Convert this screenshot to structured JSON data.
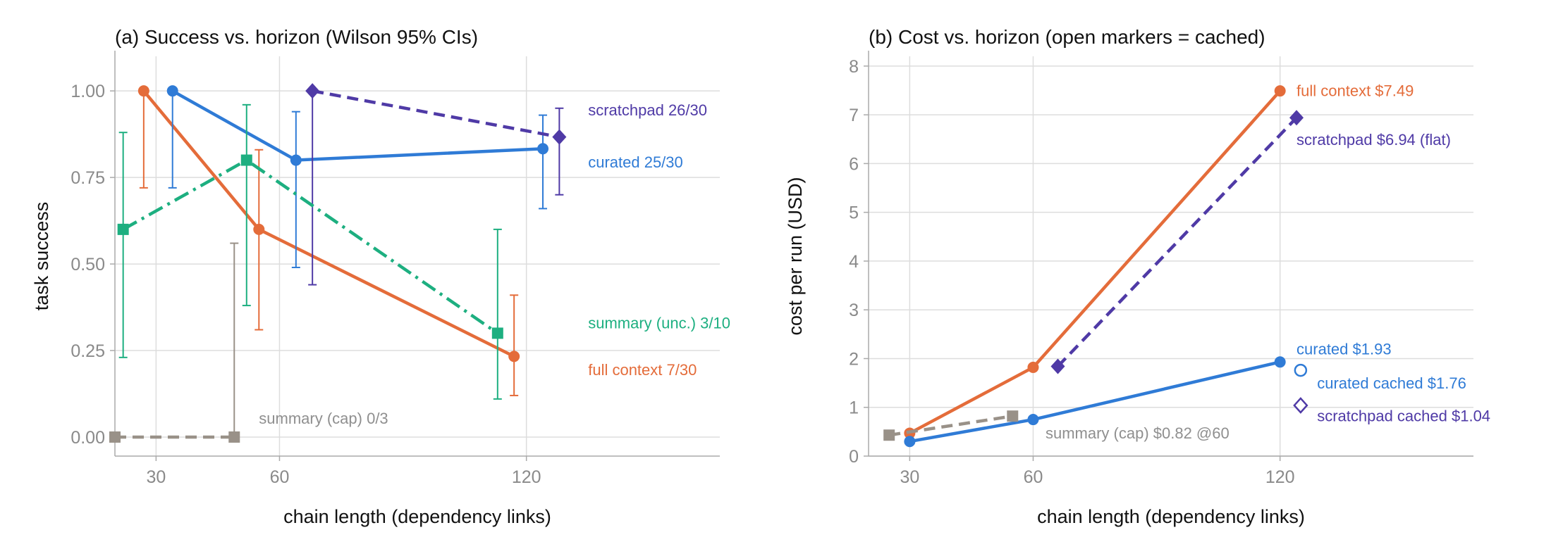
{
  "chart_data": [
    {
      "type": "line",
      "title": "(a) Success vs. horizon (Wilson 95% CIs)",
      "xlabel": "chain length (dependency links)",
      "ylabel": "task success",
      "xticks": [
        "30",
        "60",
        "120"
      ],
      "yticks": [
        "0.00",
        "0.25",
        "0.50",
        "0.75",
        "1.00"
      ],
      "xlim": [
        20,
        167
      ],
      "ylim": [
        -0.055,
        1.1
      ],
      "grid": true,
      "series": [
        {
          "name": "full context",
          "color": "#E46C3A",
          "marker": "circle",
          "dash": "solid",
          "x": [
            27,
            55,
            117
          ],
          "y": [
            1.0,
            0.6,
            0.233
          ],
          "ci_low": [
            0.72,
            0.31,
            0.12
          ],
          "ci_high": [
            1.0,
            0.83,
            0.41
          ]
        },
        {
          "name": "curated",
          "color": "#2F7BD6",
          "marker": "circle",
          "dash": "solid",
          "x": [
            34,
            64,
            124
          ],
          "y": [
            1.0,
            0.8,
            0.833
          ],
          "ci_low": [
            0.72,
            0.49,
            0.66
          ],
          "ci_high": [
            1.0,
            0.94,
            0.93
          ]
        },
        {
          "name": "scratchpad",
          "color": "#4F3AA6",
          "marker": "diamond",
          "dash": "dashed",
          "x": [
            68,
            128
          ],
          "y": [
            1.0,
            0.867
          ],
          "ci_low": [
            0.44,
            0.7
          ],
          "ci_high": [
            1.0,
            0.95
          ]
        },
        {
          "name": "summary (unc.)",
          "color": "#1DAF80",
          "marker": "square",
          "dash": "dashdot",
          "x": [
            22,
            52,
            113
          ],
          "y": [
            0.6,
            0.8,
            0.3
          ],
          "ci_low": [
            0.23,
            0.38,
            0.11
          ],
          "ci_high": [
            0.88,
            0.96,
            0.6
          ]
        },
        {
          "name": "summary (cap)",
          "color": "#999188",
          "marker": "square",
          "dash": "dashed",
          "x": [
            20,
            49
          ],
          "y": [
            0.0,
            0.0
          ],
          "ci_low": [
            null,
            0.0
          ],
          "ci_high": [
            null,
            0.56
          ]
        }
      ],
      "annotations": [
        {
          "text": "scratchpad 26/30",
          "color": "#4F3AA6",
          "x": 135,
          "y": 0.945
        },
        {
          "text": "curated 25/30",
          "color": "#2F7BD6",
          "x": 135,
          "y": 0.795
        },
        {
          "text": "summary (unc.) 3/10",
          "color": "#1DAF80",
          "x": 135,
          "y": 0.33
        },
        {
          "text": "full context 7/30",
          "color": "#E46C3A",
          "x": 135,
          "y": 0.195
        },
        {
          "text": "summary (cap) 0/3",
          "color": "#8f8f8f",
          "x": 55,
          "y": 0.055
        }
      ]
    },
    {
      "type": "line",
      "title": "(b) Cost vs. horizon (open markers = cached)",
      "xlabel": "chain length (dependency links)",
      "ylabel": "cost per run (USD)",
      "xticks": [
        "30",
        "60",
        "120"
      ],
      "yticks": [
        "0",
        "1",
        "2",
        "3",
        "4",
        "5",
        "6",
        "7",
        "8"
      ],
      "xlim": [
        20,
        167
      ],
      "ylim": [
        0,
        8.2
      ],
      "grid": true,
      "series": [
        {
          "name": "full context",
          "color": "#E46C3A",
          "marker": "circle",
          "dash": "solid",
          "x": [
            30,
            60,
            120
          ],
          "y": [
            0.47,
            1.82,
            7.49
          ]
        },
        {
          "name": "scratchpad",
          "color": "#4F3AA6",
          "marker": "diamond",
          "dash": "dashed",
          "x": [
            66,
            124
          ],
          "y": [
            1.84,
            6.94
          ]
        },
        {
          "name": "curated",
          "color": "#2F7BD6",
          "marker": "circle",
          "dash": "solid",
          "x": [
            30,
            60,
            120
          ],
          "y": [
            0.3,
            0.75,
            1.93
          ]
        },
        {
          "name": "summary (cap)",
          "color": "#999188",
          "marker": "square",
          "dash": "dashed",
          "x": [
            25,
            55
          ],
          "y": [
            0.43,
            0.82
          ]
        },
        {
          "name": "curated cached",
          "color": "#2F7BD6",
          "marker": "open-circle",
          "dash": "none",
          "x": [
            125
          ],
          "y": [
            1.76
          ]
        },
        {
          "name": "scratchpad cached",
          "color": "#4F3AA6",
          "marker": "open-diamond",
          "dash": "none",
          "x": [
            125
          ],
          "y": [
            1.04
          ]
        }
      ],
      "annotations": [
        {
          "text": "full context  $7.49",
          "color": "#E46C3A",
          "x": 124,
          "y": 7.5
        },
        {
          "text": "scratchpad  $6.94 (flat)",
          "color": "#4F3AA6",
          "x": 124,
          "y": 6.5
        },
        {
          "text": "curated  $1.93",
          "color": "#2F7BD6",
          "x": 124,
          "y": 2.2
        },
        {
          "text": "curated cached  $1.76",
          "color": "#2F7BD6",
          "x": 129,
          "y": 1.5
        },
        {
          "text": "scratchpad cached  $1.04",
          "color": "#4F3AA6",
          "x": 129,
          "y": 0.83
        },
        {
          "text": "summary (cap) $0.82 @60",
          "color": "#8f8f8f",
          "x": 63,
          "y": 0.48
        }
      ]
    }
  ]
}
